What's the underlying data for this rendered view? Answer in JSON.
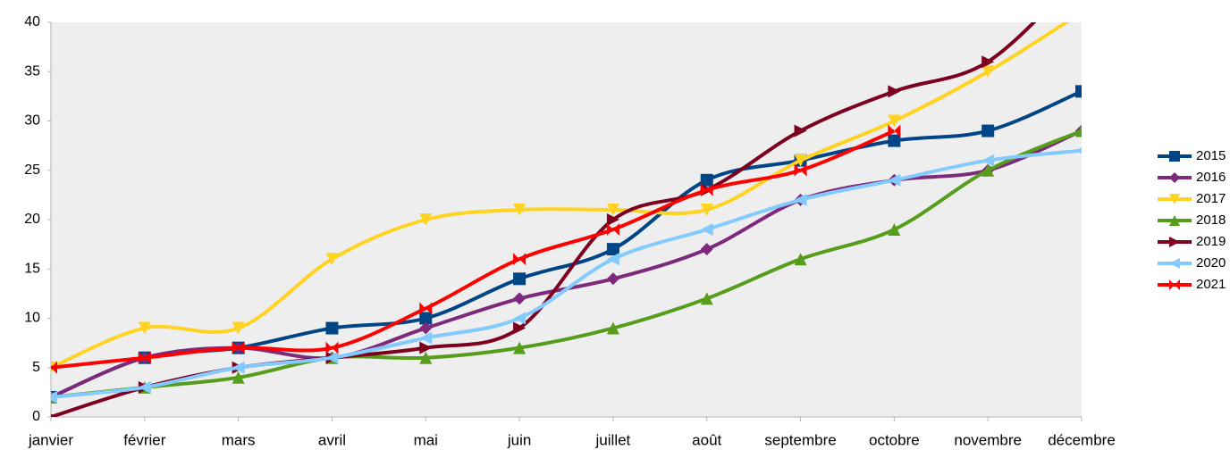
{
  "chart_data": {
    "type": "line",
    "smooth": true,
    "grid": false,
    "legend": "right",
    "categories": [
      "janvier",
      "février",
      "mars",
      "avril",
      "mai",
      "juin",
      "juillet",
      "août",
      "septembre",
      "octobre",
      "novembre",
      "décembre"
    ],
    "ylim": [
      0,
      40
    ],
    "yticks": [
      0,
      5,
      10,
      15,
      20,
      25,
      30,
      35,
      40
    ],
    "series": [
      {
        "name": "2015",
        "color": "#004586",
        "values": [
          2,
          6,
          7,
          9,
          10,
          14,
          17,
          24,
          26,
          28,
          29,
          33
        ]
      },
      {
        "name": "2016",
        "color": "#7e2a7c",
        "values": [
          2,
          6,
          7,
          6,
          9,
          12,
          14,
          17,
          22,
          24,
          25,
          29
        ]
      },
      {
        "name": "2017",
        "color": "#ffd320",
        "values": [
          5,
          9,
          9,
          16,
          20,
          21,
          21,
          21,
          26,
          30,
          35,
          41
        ]
      },
      {
        "name": "2018",
        "color": "#579d1c",
        "values": [
          2,
          3,
          4,
          6,
          6,
          7,
          9,
          12,
          16,
          19,
          25,
          29
        ]
      },
      {
        "name": "2019",
        "color": "#7e0021",
        "values": [
          0,
          3,
          5,
          6,
          7,
          9,
          20,
          23,
          29,
          33,
          36,
          45
        ]
      },
      {
        "name": "2020",
        "color": "#83caff",
        "values": [
          2,
          3,
          5,
          6,
          8,
          10,
          16,
          19,
          22,
          24,
          26,
          27
        ]
      },
      {
        "name": "2021",
        "color": "#ff0000",
        "values": [
          5,
          6,
          7,
          7,
          11,
          16,
          19,
          23,
          25,
          29,
          null,
          null
        ]
      }
    ]
  }
}
